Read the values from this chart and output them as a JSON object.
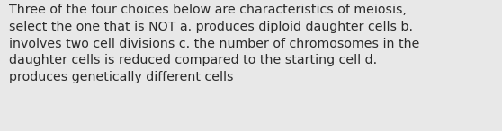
{
  "lines": [
    "Three of the four choices below are characteristics of meiosis,",
    "select the one that is NOT a. produces diploid daughter cells b.",
    "involves two cell divisions c. the number of chromosomes in the",
    "daughter cells is reduced compared to the starting cell d.",
    "produces genetically different cells"
  ],
  "background_color": "#e8e8e8",
  "text_color": "#2b2b2b",
  "font_size": 10.2,
  "font_family": "DejaVu Sans",
  "fig_width": 5.58,
  "fig_height": 1.46,
  "dpi": 100
}
